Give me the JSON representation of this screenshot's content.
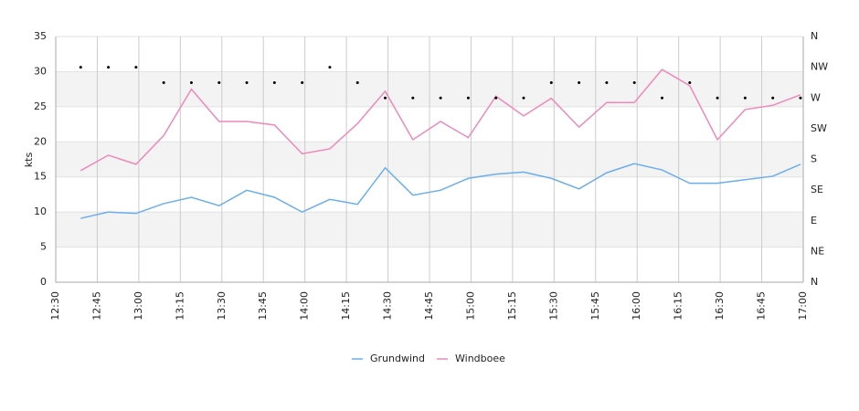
{
  "chart_data": {
    "type": "line",
    "ylabel": "kts",
    "x": [
      "12:39",
      "12:49",
      "12:59",
      "13:09",
      "13:19",
      "13:29",
      "13:39",
      "13:49",
      "13:59",
      "14:09",
      "14:19",
      "14:29",
      "14:39",
      "14:49",
      "14:59",
      "15:09",
      "15:19",
      "15:29",
      "15:39",
      "15:49",
      "15:59",
      "16:09",
      "16:19",
      "16:29",
      "16:39",
      "16:49",
      "16:59"
    ],
    "xlim": [
      "12:30",
      "17:00"
    ],
    "xticks": [
      "12:30",
      "12:45",
      "13:00",
      "13:15",
      "13:30",
      "13:45",
      "14:00",
      "14:15",
      "14:30",
      "14:45",
      "15:00",
      "15:15",
      "15:30",
      "15:45",
      "16:00",
      "16:15",
      "16:30",
      "16:45",
      "17:00"
    ],
    "ylim": [
      0,
      35
    ],
    "yticks": [
      0,
      5,
      10,
      15,
      20,
      25,
      30,
      35
    ],
    "y2lim": [
      0,
      360
    ],
    "y2ticks": [
      {
        "value": 0,
        "label": "N"
      },
      {
        "value": 45,
        "label": "NE"
      },
      {
        "value": 90,
        "label": "E"
      },
      {
        "value": 135,
        "label": "SE"
      },
      {
        "value": 180,
        "label": "S"
      },
      {
        "value": 225,
        "label": "SW"
      },
      {
        "value": 270,
        "label": "W"
      },
      {
        "value": 315,
        "label": "NW"
      },
      {
        "value": 360,
        "label": "N"
      }
    ],
    "grid": true,
    "legend": "bottom",
    "series": [
      {
        "name": "Grundwind",
        "color": "#6aaeec",
        "values": [
          9.1,
          10.0,
          9.8,
          11.2,
          12.1,
          10.9,
          13.1,
          12.1,
          10.0,
          11.8,
          11.1,
          16.3,
          12.4,
          13.1,
          14.8,
          15.4,
          15.7,
          14.8,
          13.3,
          15.6,
          16.9,
          16.0,
          14.1,
          14.1,
          14.6,
          15.1,
          16.8
        ]
      },
      {
        "name": "Windboee",
        "color": "#ee88bb",
        "values": [
          15.9,
          18.1,
          16.8,
          20.9,
          27.5,
          22.9,
          22.9,
          22.4,
          18.3,
          19.0,
          22.6,
          27.2,
          20.3,
          22.9,
          20.6,
          26.5,
          23.7,
          26.2,
          22.1,
          25.6,
          25.6,
          30.3,
          28.0,
          20.3,
          24.6,
          25.2,
          26.7
        ]
      }
    ],
    "direction": {
      "axis": "y2",
      "color": "#000000",
      "values": [
        315,
        315,
        315,
        292.5,
        292.5,
        292.5,
        292.5,
        292.5,
        292.5,
        315,
        292.5,
        270,
        270,
        270,
        270,
        270,
        270,
        292.5,
        292.5,
        292.5,
        292.5,
        270,
        292.5,
        270,
        270,
        270,
        270
      ]
    }
  }
}
